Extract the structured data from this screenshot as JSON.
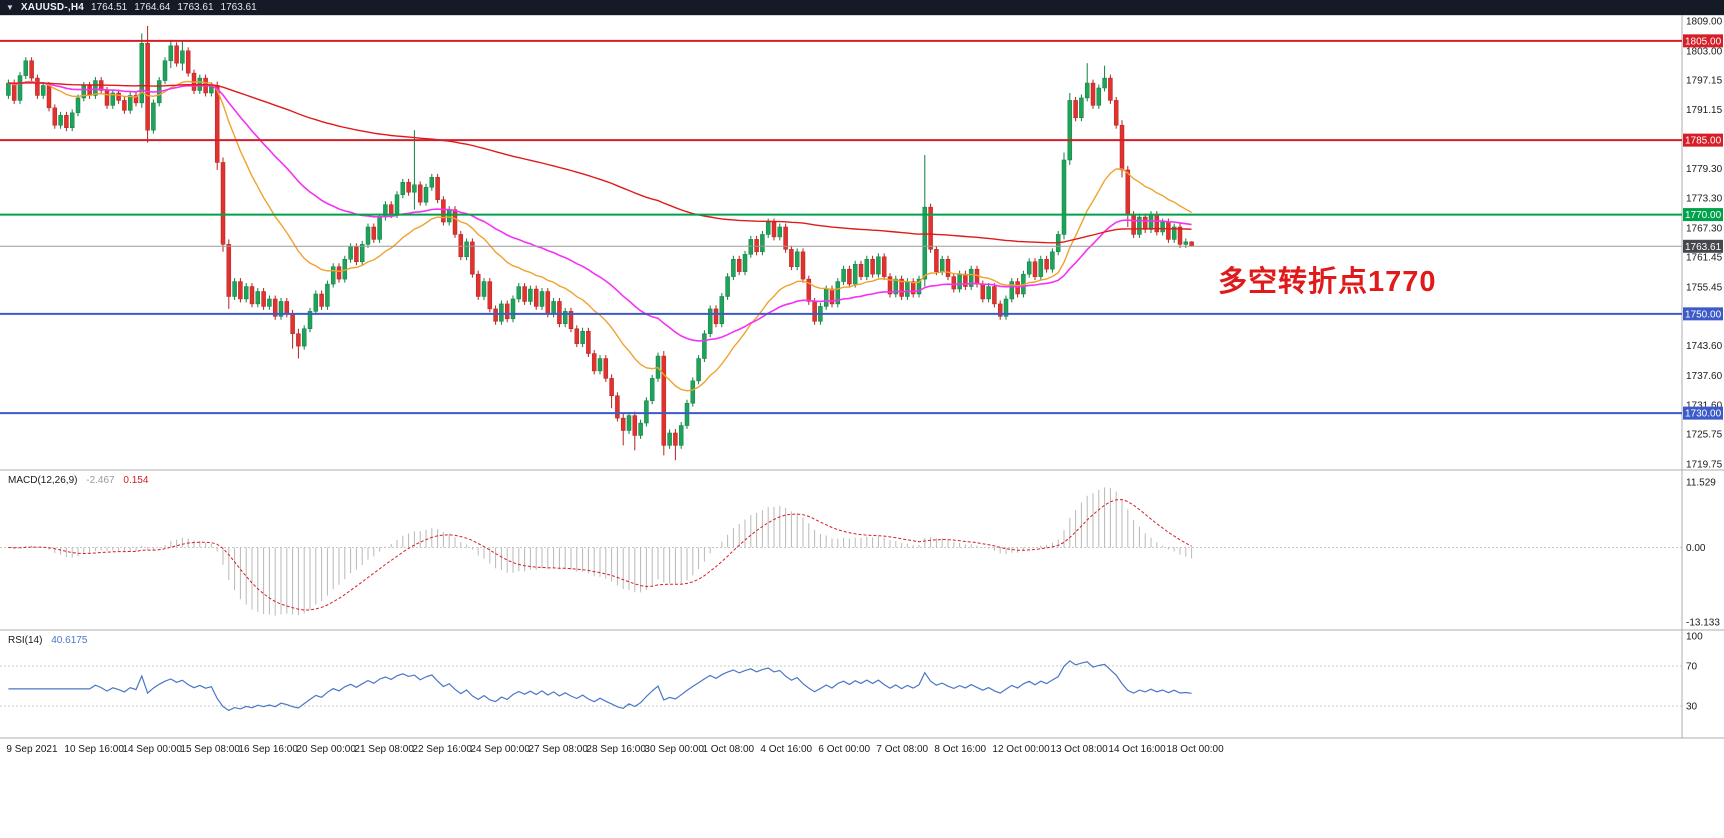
{
  "topbar": {
    "dropdown_icon": "▼",
    "symbol": "XAUUSD-,H4",
    "open": "1764.51",
    "high": "1764.64",
    "low": "1763.61",
    "close": "1763.61"
  },
  "chart_data": {
    "type": "candlestick",
    "symbol": "XAUUSD",
    "timeframe": "H4",
    "ylim": [
      1718.6,
      1810.2
    ],
    "price_axis_labels": [
      "1809.00",
      "1803.00",
      "1797.15",
      "1791.15",
      "1785.30",
      "1779.30",
      "1773.30",
      "1767.30",
      "1761.45",
      "1755.45",
      "1749.45",
      "1743.60",
      "1737.60",
      "1731.60",
      "1725.75",
      "1719.75"
    ],
    "x_labels": [
      "9 Sep 2021",
      "10 Sep 16:00",
      "14 Sep 00:00",
      "15 Sep 08:00",
      "16 Sep 16:00",
      "20 Sep 00:00",
      "21 Sep 08:00",
      "22 Sep 16:00",
      "24 Sep 00:00",
      "27 Sep 08:00",
      "28 Sep 16:00",
      "30 Sep 00:00",
      "1 Oct 08:00",
      "4 Oct 16:00",
      "6 Oct 00:00",
      "7 Oct 08:00",
      "8 Oct 16:00",
      "12 Oct 00:00",
      "13 Oct 08:00",
      "14 Oct 16:00",
      "18 Oct 00:00"
    ],
    "x_label_every_n_bars": 10,
    "candle_colors": {
      "up": "#1fa25a",
      "up_border": "#0f7f41",
      "down": "#e0332f",
      "down_border": "#b2221f"
    },
    "candles": {
      "first_open": 1794.0,
      "wick_pad": 0.7,
      "closes": [
        1796.5,
        1793,
        1798,
        1801,
        1797.5,
        1794,
        1796,
        1791.5,
        1788,
        1790,
        1787.5,
        1790.5,
        1793.5,
        1796,
        1794,
        1797,
        1795,
        1792,
        1794.5,
        1793,
        1791,
        1794,
        1792.5,
        1804.5,
        1787,
        1792.5,
        1797,
        1801,
        1804,
        1800.5,
        1803,
        1798.5,
        1795,
        1797.5,
        1794.5,
        1796,
        1780.5,
        1764,
        1753.5,
        1756.5,
        1753,
        1755.5,
        1752,
        1754.5,
        1751.5,
        1753,
        1749.5,
        1752.5,
        1750,
        1746,
        1743.5,
        1747,
        1750.5,
        1754,
        1751.5,
        1756,
        1759.5,
        1757,
        1761,
        1763.5,
        1760.5,
        1764,
        1767.5,
        1765,
        1769.5,
        1772,
        1770,
        1774,
        1776.5,
        1774.5,
        1776,
        1772.5,
        1775.5,
        1777.5,
        1773,
        1768.5,
        1771,
        1766,
        1761.5,
        1764.5,
        1758,
        1753.5,
        1756.5,
        1751,
        1748.5,
        1752,
        1749,
        1753,
        1755.5,
        1752.5,
        1755,
        1751.5,
        1754.5,
        1750,
        1752.5,
        1748,
        1750.5,
        1747,
        1744,
        1746.5,
        1742,
        1738.5,
        1741,
        1737,
        1733.5,
        1729,
        1726.5,
        1729.5,
        1725.5,
        1728,
        1732.5,
        1737,
        1741.5,
        1723.5,
        1726,
        1723.5,
        1727.5,
        1732,
        1736.5,
        1741,
        1746,
        1751,
        1748,
        1753.5,
        1757.5,
        1761,
        1758.5,
        1762,
        1765,
        1762.5,
        1766,
        1768.5,
        1765.5,
        1767.5,
        1763,
        1759.5,
        1762.5,
        1757,
        1752.5,
        1748.5,
        1751.5,
        1755,
        1752,
        1756.5,
        1759,
        1756,
        1760,
        1757.5,
        1761,
        1758,
        1761.5,
        1757.5,
        1754,
        1757,
        1753.5,
        1756.5,
        1754,
        1757,
        1771.5,
        1763,
        1758.5,
        1761,
        1757.5,
        1755,
        1758,
        1755.5,
        1759,
        1756,
        1753,
        1755.5,
        1752,
        1749.5,
        1753,
        1756.5,
        1754,
        1758,
        1760.5,
        1757.5,
        1761,
        1759,
        1762.5,
        1766,
        1781,
        1793,
        1789.5,
        1793.5,
        1796.5,
        1792,
        1795.5,
        1797.5,
        1793,
        1788,
        1779,
        1770,
        1766,
        1769.5,
        1767,
        1770,
        1766.5,
        1768.5,
        1765,
        1767.5,
        1764,
        1764.5,
        1763.61
      ],
      "special_bars": {
        "23": [
          1792.5,
          1806.5,
          1791.5,
          1804.5
        ],
        "24": [
          1804.5,
          1808,
          1784.5,
          1787
        ],
        "28": [
          1801,
          1805.2,
          1799.5,
          1804
        ],
        "30": [
          1800.5,
          1805,
          1799,
          1803
        ],
        "36": [
          1796,
          1796.8,
          1779,
          1780.5
        ],
        "37": [
          1780.5,
          1781.5,
          1762.5,
          1764
        ],
        "38": [
          1764,
          1765,
          1751,
          1753.5
        ],
        "49": [
          1750,
          1750.8,
          1743,
          1746
        ],
        "50": [
          1746,
          1747,
          1741,
          1743.5
        ],
        "70": [
          1774.5,
          1787,
          1771,
          1776
        ],
        "104": [
          1737,
          1737.8,
          1731,
          1733.5
        ],
        "106": [
          1729,
          1730,
          1723.5,
          1726.5
        ],
        "108": [
          1729.5,
          1730.3,
          1722.5,
          1725.5
        ],
        "113": [
          1741.5,
          1742.5,
          1721.5,
          1723.5
        ],
        "115": [
          1726,
          1726.8,
          1720.5,
          1723.5
        ],
        "158": [
          1757,
          1782,
          1755.5,
          1771.5
        ],
        "182": [
          1766,
          1782.5,
          1765,
          1781
        ],
        "183": [
          1781,
          1794.5,
          1780,
          1793
        ],
        "186": [
          1793.5,
          1800.5,
          1792.8,
          1796.5
        ],
        "189": [
          1795.5,
          1800,
          1794.8,
          1797.5
        ],
        "192": [
          1788,
          1789,
          1777.5,
          1779
        ],
        "193": [
          1779,
          1779.8,
          1767.5,
          1770
        ],
        "204": [
          1764.51,
          1764.64,
          1763.61,
          1763.61
        ]
      }
    },
    "moving_averages": [
      {
        "name": "fast-ma",
        "period": 21,
        "color": "#f0a22e",
        "width": 1.4
      },
      {
        "name": "mid-ma",
        "period": 50,
        "color": "#f531f5",
        "width": 1.6
      },
      {
        "name": "slow-ma",
        "period": 200,
        "color": "#e01a1a",
        "width": 1.4
      }
    ],
    "hlines": [
      {
        "price": 1805.0,
        "color": "#d51e28",
        "width": 2,
        "badge": "1805.00",
        "badge_color": "#d51e28"
      },
      {
        "price": 1785.0,
        "color": "#d51e28",
        "width": 2,
        "badge": "1785.00",
        "badge_color": "#d51e28"
      },
      {
        "price": 1770.0,
        "color": "#00a14b",
        "width": 2,
        "badge": "1770.00",
        "badge_color": "#00a14b"
      },
      {
        "price": 1750.0,
        "color": "#3c5ac8",
        "width": 2,
        "badge": "1750.00",
        "badge_color": "#3c5ac8"
      },
      {
        "price": 1730.0,
        "color": "#3c5ac8",
        "width": 2,
        "badge": "1730.00",
        "badge_color": "#3c5ac8"
      },
      {
        "price": 1763.61,
        "color": "#9a9a9a",
        "width": 1,
        "badge": "1763.61",
        "badge_color": "#45494e",
        "current": true
      }
    ],
    "macd": {
      "name_label": "MACD(12,26,9)",
      "value": "-2.467",
      "signal_value": "0.154",
      "fast": 12,
      "slow": 26,
      "signal": 9,
      "axis_max": 11.529,
      "axis_min": -13.133,
      "axis_labels": [
        "11.529",
        "0.00",
        "-13.133"
      ],
      "histogram_color": "#b8b8b8",
      "signal_color": "#d51e28"
    },
    "rsi": {
      "name_label": "RSI(14)",
      "value": "40.6175",
      "period": 14,
      "levels": [
        70,
        30
      ],
      "axis_labels": [
        "100",
        "70",
        "30"
      ],
      "color": "#4a76c7"
    },
    "annotation": {
      "text": "多空转折点1770",
      "color": "#e01a1a"
    }
  }
}
